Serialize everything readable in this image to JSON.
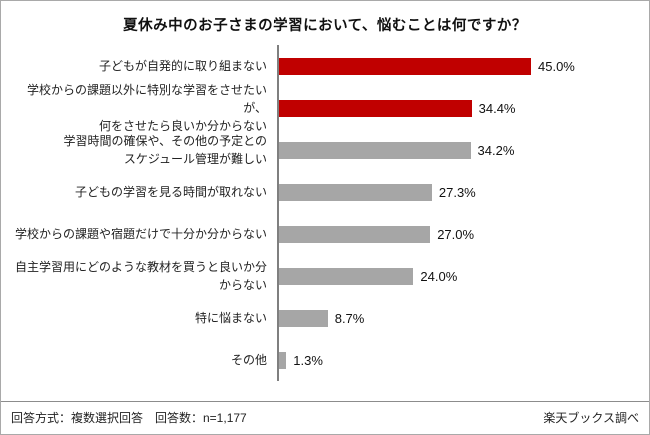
{
  "chart_data": {
    "type": "bar",
    "orientation": "horizontal",
    "title": "夏休み中のお子さまの学習において、悩むことは何ですか？",
    "categories": [
      "子どもが自発的に取り組まない",
      "学校からの課題以外に特別な学習をさせたいが、\n何をさせたら良いか分からない",
      "学習時間の確保や、その他の予定との\nスケジュール管理が難しい",
      "子どもの学習を見る時間が取れない",
      "学校からの課題や宿題だけで十分か分からない",
      "自主学習用にどのような教材を買うと良いか分からない",
      "特に悩まない",
      "その他"
    ],
    "values": [
      45.0,
      34.4,
      34.2,
      27.3,
      27.0,
      24.0,
      8.7,
      1.3
    ],
    "value_labels": [
      "45.0%",
      "34.4%",
      "34.2%",
      "27.3%",
      "27.0%",
      "24.0%",
      "8.7%",
      "1.3%"
    ],
    "bar_colors": [
      "#c00000",
      "#c00000",
      "#a6a6a6",
      "#a6a6a6",
      "#a6a6a6",
      "#a6a6a6",
      "#a6a6a6",
      "#a6a6a6"
    ],
    "xlim": [
      0,
      64
    ],
    "accent_color": "#c00000",
    "default_bar_color": "#a6a6a6",
    "grid": false,
    "legend": "none"
  },
  "footer": {
    "left": "回答方式：複数選択回答　回答数：n=1,177",
    "right": "楽天ブックス調べ"
  }
}
